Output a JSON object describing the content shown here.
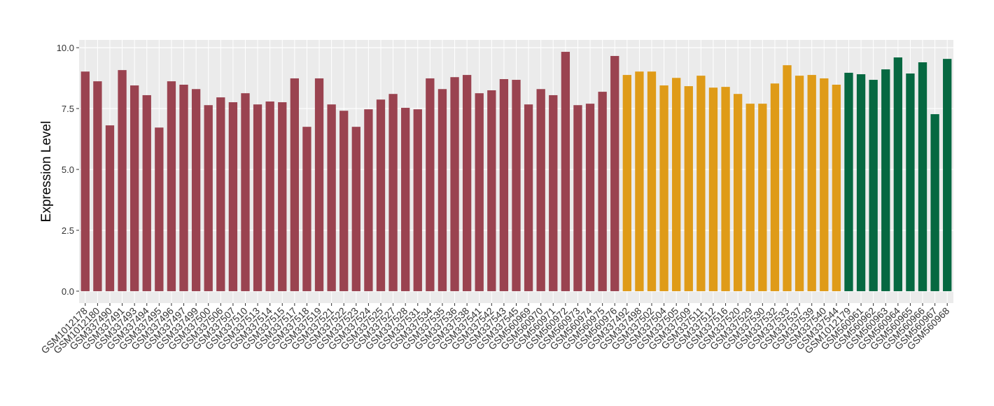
{
  "chart_data": {
    "type": "bar",
    "y_label": "Expression Level",
    "categories": [
      "GSM1012178",
      "GSM1012180",
      "GSM337490",
      "GSM337491",
      "GSM337493",
      "GSM337494",
      "GSM337495",
      "GSM337496",
      "GSM337497",
      "GSM337499",
      "GSM337500",
      "GSM337506",
      "GSM337507",
      "GSM337510",
      "GSM337513",
      "GSM337514",
      "GSM337515",
      "GSM337517",
      "GSM337518",
      "GSM337519",
      "GSM337521",
      "GSM337522",
      "GSM337523",
      "GSM337524",
      "GSM337525",
      "GSM337527",
      "GSM337528",
      "GSM337531",
      "GSM337534",
      "GSM337535",
      "GSM337536",
      "GSM337538",
      "GSM337541",
      "GSM337542",
      "GSM337543",
      "GSM337545",
      "GSM560969",
      "GSM560970",
      "GSM560971",
      "GSM560972",
      "GSM560973",
      "GSM560974",
      "GSM560975",
      "GSM560976",
      "GSM337492",
      "GSM337498",
      "GSM337502",
      "GSM337504",
      "GSM337505",
      "GSM337509",
      "GSM337511",
      "GSM337512",
      "GSM337516",
      "GSM337520",
      "GSM337529",
      "GSM337530",
      "GSM337532",
      "GSM337533",
      "GSM337537",
      "GSM337539",
      "GSM337540",
      "GSM337544",
      "GSM1012179",
      "GSM560961",
      "GSM560962",
      "GSM560963",
      "GSM560964",
      "GSM560965",
      "GSM560966",
      "GSM560967",
      "GSM560968"
    ],
    "values": [
      9.02,
      8.62,
      6.81,
      9.08,
      8.45,
      8.05,
      6.72,
      8.62,
      8.48,
      8.3,
      7.64,
      7.96,
      7.76,
      8.13,
      7.67,
      7.79,
      7.76,
      8.74,
      6.75,
      8.74,
      7.67,
      7.41,
      6.75,
      7.47,
      7.87,
      8.1,
      7.53,
      7.47,
      8.74,
      8.3,
      8.79,
      8.88,
      8.13,
      8.25,
      8.71,
      8.68,
      7.67,
      8.3,
      8.05,
      9.83,
      7.64,
      7.7,
      8.19,
      9.66,
      8.88,
      9.02,
      9.02,
      8.45,
      8.76,
      8.42,
      8.85,
      8.36,
      8.39,
      8.1,
      7.7,
      7.7,
      8.53,
      9.28,
      8.85,
      8.88,
      8.74,
      8.48,
      8.97,
      8.91,
      8.68,
      9.11,
      9.6,
      8.94,
      9.4,
      7.27,
      9.54
    ],
    "colors": [
      "#9a4350",
      "#9a4350",
      "#9a4350",
      "#9a4350",
      "#9a4350",
      "#9a4350",
      "#9a4350",
      "#9a4350",
      "#9a4350",
      "#9a4350",
      "#9a4350",
      "#9a4350",
      "#9a4350",
      "#9a4350",
      "#9a4350",
      "#9a4350",
      "#9a4350",
      "#9a4350",
      "#9a4350",
      "#9a4350",
      "#9a4350",
      "#9a4350",
      "#9a4350",
      "#9a4350",
      "#9a4350",
      "#9a4350",
      "#9a4350",
      "#9a4350",
      "#9a4350",
      "#9a4350",
      "#9a4350",
      "#9a4350",
      "#9a4350",
      "#9a4350",
      "#9a4350",
      "#9a4350",
      "#9a4350",
      "#9a4350",
      "#9a4350",
      "#9a4350",
      "#9a4350",
      "#9a4350",
      "#9a4350",
      "#9a4350",
      "#df9b18",
      "#df9b18",
      "#df9b18",
      "#df9b18",
      "#df9b18",
      "#df9b18",
      "#df9b18",
      "#df9b18",
      "#df9b18",
      "#df9b18",
      "#df9b18",
      "#df9b18",
      "#df9b18",
      "#df9b18",
      "#df9b18",
      "#df9b18",
      "#df9b18",
      "#df9b18",
      "#066841",
      "#066841",
      "#066841",
      "#066841",
      "#066841",
      "#066841",
      "#066841",
      "#066841",
      "#066841"
    ],
    "ylim": [
      -0.49,
      10.32
    ],
    "yticks": [
      {
        "value": 0,
        "label": "0.0"
      },
      2.5,
      {
        "value": 5,
        "label": "5.0"
      },
      7.5,
      {
        "value": 10,
        "label": "10.0"
      }
    ],
    "grid": true
  }
}
